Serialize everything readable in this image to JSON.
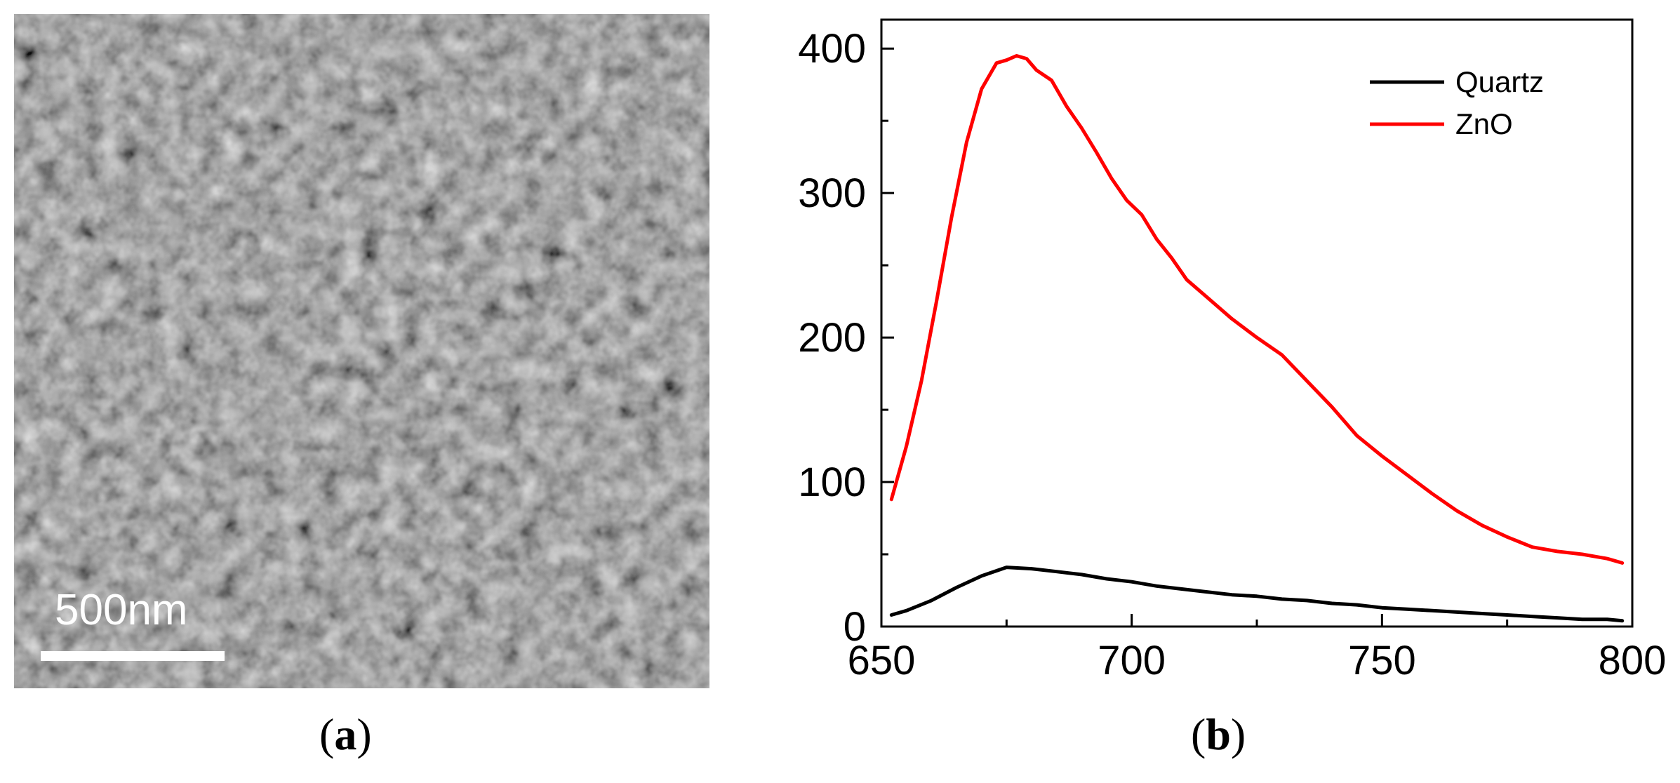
{
  "panels": {
    "a": {
      "label": "a",
      "scale_bar_text": "500nm",
      "background_color": "#5a5a5a"
    },
    "b": {
      "label": "b"
    }
  },
  "chart_data": {
    "type": "line",
    "title": "",
    "xlabel": "",
    "ylabel": "",
    "xlim": [
      650,
      800
    ],
    "ylim": [
      0,
      420
    ],
    "xticks": [
      650,
      700,
      750,
      800
    ],
    "yticks": [
      0,
      100,
      200,
      300,
      400
    ],
    "grid": false,
    "legend_position": "top-right",
    "series": [
      {
        "name": "Quartz",
        "color": "#000000",
        "x": [
          652,
          655,
          660,
          665,
          670,
          675,
          680,
          685,
          690,
          695,
          700,
          705,
          710,
          715,
          720,
          725,
          730,
          735,
          740,
          745,
          750,
          755,
          760,
          765,
          770,
          775,
          780,
          785,
          790,
          795,
          798
        ],
        "y": [
          8,
          11,
          18,
          27,
          35,
          41,
          40,
          38,
          36,
          33,
          31,
          28,
          26,
          24,
          22,
          21,
          19,
          18,
          16,
          15,
          13,
          12,
          11,
          10,
          9,
          8,
          7,
          6,
          5,
          5,
          4
        ]
      },
      {
        "name": "ZnO",
        "color": "#ff0000",
        "x": [
          652,
          655,
          658,
          661,
          664,
          667,
          670,
          673,
          675,
          677,
          679,
          681,
          684,
          687,
          690,
          693,
          696,
          699,
          702,
          705,
          708,
          711,
          715,
          720,
          725,
          730,
          735,
          740,
          745,
          750,
          755,
          760,
          765,
          770,
          775,
          780,
          785,
          790,
          795,
          798
        ],
        "y": [
          88,
          125,
          170,
          225,
          283,
          335,
          372,
          390,
          392,
          395,
          393,
          385,
          378,
          360,
          345,
          328,
          310,
          295,
          285,
          268,
          255,
          240,
          228,
          213,
          200,
          188,
          170,
          152,
          132,
          118,
          105,
          92,
          80,
          70,
          62,
          55,
          52,
          50,
          47,
          44
        ]
      }
    ]
  }
}
